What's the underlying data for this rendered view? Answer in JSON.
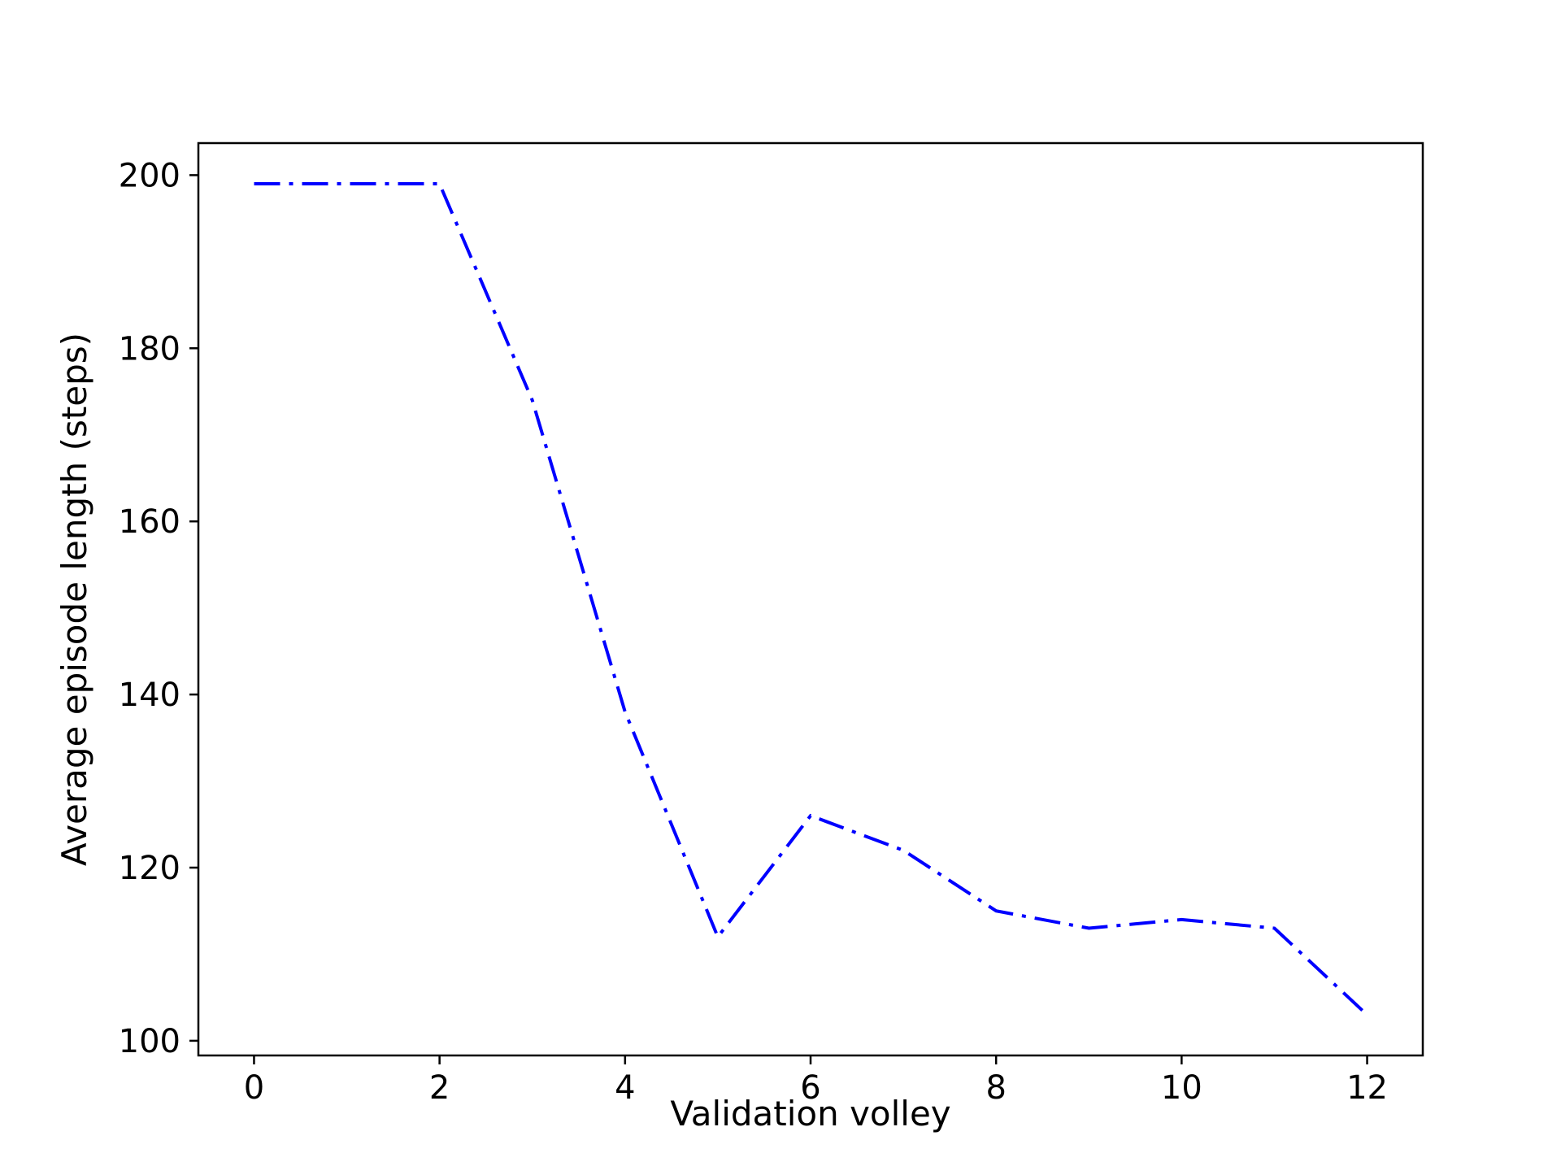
{
  "chart_data": {
    "type": "line",
    "title": "",
    "xlabel": "Validation volley",
    "ylabel": "Average episode length (steps)",
    "x_ticks": [
      0,
      2,
      4,
      6,
      8,
      10,
      12
    ],
    "y_ticks": [
      100,
      120,
      140,
      160,
      180,
      200
    ],
    "xlim": [
      -0.6,
      12.6
    ],
    "ylim": [
      98.3,
      203.7
    ],
    "grid": false,
    "legend": "none",
    "series": [
      {
        "color": "#0000ff",
        "linestyle": "dashdot",
        "x": [
          0,
          1,
          2,
          3,
          4,
          5,
          6,
          7,
          8,
          9,
          10,
          11,
          12
        ],
        "y": [
          199,
          199,
          199,
          174,
          138,
          112,
          126,
          122,
          115,
          113,
          114,
          113,
          103
        ]
      }
    ]
  }
}
